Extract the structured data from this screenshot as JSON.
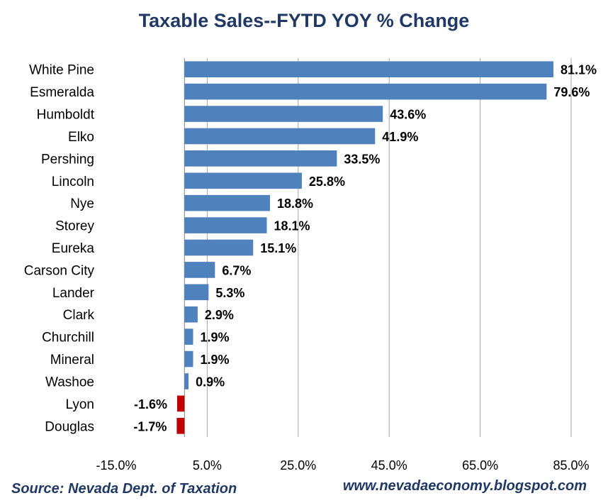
{
  "chart_data": {
    "type": "bar",
    "orientation": "horizontal",
    "title": "Taxable Sales--FYTD YOY % Change",
    "categories": [
      "White Pine",
      "Esmeralda",
      "Humboldt",
      "Elko",
      "Pershing",
      "Lincoln",
      "Nye",
      "Storey",
      "Eureka",
      "Carson City",
      "Lander",
      "Clark",
      "Churchill",
      "Mineral",
      "Washoe",
      "Lyon",
      "Douglas"
    ],
    "values": [
      81.1,
      79.6,
      43.6,
      41.9,
      33.5,
      25.8,
      18.8,
      18.1,
      15.1,
      6.7,
      5.3,
      2.9,
      1.9,
      1.9,
      0.9,
      -1.6,
      -1.7
    ],
    "value_labels": [
      "81.1%",
      "79.6%",
      "43.6%",
      "41.9%",
      "33.5%",
      "25.8%",
      "18.8%",
      "18.1%",
      "15.1%",
      "6.7%",
      "5.3%",
      "2.9%",
      "1.9%",
      "1.9%",
      "0.9%",
      "-1.6%",
      "-1.7%"
    ],
    "x_ticks": [
      -15,
      5,
      25,
      45,
      65,
      85
    ],
    "x_tick_labels": [
      "-15.0%",
      "5.0%",
      "25.0%",
      "45.0%",
      "65.0%",
      "85.0%"
    ],
    "xlim": [
      -15,
      85
    ],
    "xlabel": "",
    "ylabel": "",
    "grid": "vertical",
    "legend": "none",
    "colors": {
      "positive": "#4f81bd",
      "negative": "#c00000",
      "grid": "#a6a6a6",
      "title": "#1f3864"
    }
  },
  "footer": {
    "source": "Source: Nevada Dept. of Taxation",
    "url": "www.nevadaeconomy.blogspot.com"
  }
}
